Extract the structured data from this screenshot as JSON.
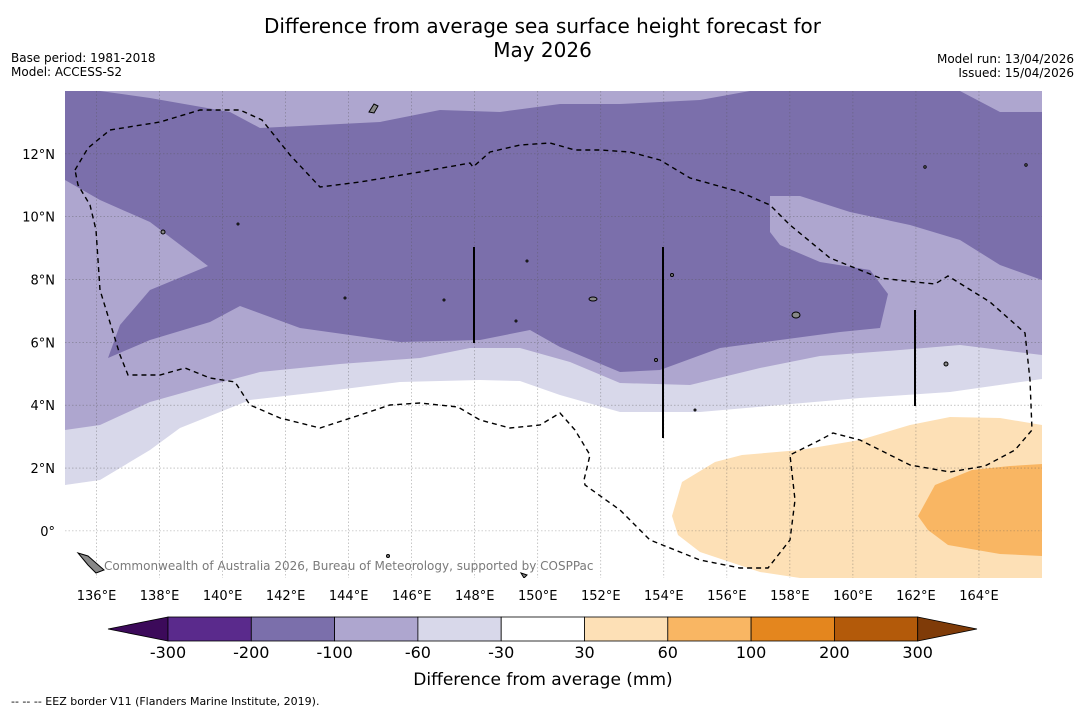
{
  "title_line1": "Difference from average sea surface height forecast for",
  "title_line2": "May 2026",
  "base_period": "Base period: 1981-2018",
  "model": "Model: ACCESS-S2",
  "model_run": "Model run: 13/04/2026",
  "issued": "Issued: 15/04/2026",
  "copyright": "Commonwealth of Australia 2026, Bureau of Meteorology, supported by COSPPac",
  "footer": "--  --  -- EEZ border V11 (Flanders Marine Institute, 2019).",
  "chart_data": {
    "type": "heatmap",
    "title": "Difference from average sea surface height forecast for May 2026",
    "xlabel": "",
    "ylabel": "",
    "xlim": [
      135,
      166
    ],
    "ylim": [
      -1.5,
      14
    ],
    "x_ticks": [
      136,
      138,
      140,
      142,
      144,
      146,
      148,
      150,
      152,
      154,
      156,
      158,
      160,
      162,
      164
    ],
    "x_tick_labels": [
      "136°E",
      "138°E",
      "140°E",
      "142°E",
      "144°E",
      "146°E",
      "148°E",
      "150°E",
      "152°E",
      "154°E",
      "156°E",
      "158°E",
      "160°E",
      "162°E",
      "164°E"
    ],
    "y_ticks": [
      0,
      2,
      4,
      6,
      8,
      10,
      12
    ],
    "y_tick_labels": [
      "0°",
      "2°N",
      "4°N",
      "6°N",
      "8°N",
      "10°N",
      "12°N"
    ],
    "colorbar": {
      "label": "Difference from average (mm)",
      "bounds": [
        -300,
        -200,
        -100,
        -60,
        -30,
        30,
        60,
        100,
        200,
        300
      ],
      "tick_labels": [
        "-300",
        "-200",
        "-100",
        "-60",
        "-30",
        "30",
        "60",
        "100",
        "200",
        "300"
      ],
      "colors": [
        "#5a2a8c",
        "#7b6fab",
        "#aea6cf",
        "#d8d8ea",
        "#ffffff",
        "#fde0b6",
        "#f9b663",
        "#e4861e",
        "#b35a0a"
      ],
      "under_color": "#3c0a5a",
      "over_color": "#7f3b08"
    },
    "regions": [
      {
        "range": "-200 to -100 mm",
        "color": "#7b6fab",
        "area": "north and central, roughly 5.5°N to 14°N"
      },
      {
        "range": "-100 to -60 mm",
        "color": "#aea6cf",
        "area": "band roughly 4.5°N to 6°N and western and eastern edges"
      },
      {
        "range": "-60 to -30 mm",
        "color": "#d8d8ea",
        "area": "band roughly 4°N to 5°N and west near 1.5°N to 3°N"
      },
      {
        "range": "30 to 60 mm",
        "color": "#fde0b6",
        "area": "south-east, roughly 153°E to 166°E, -1.5°N to 3.5°N"
      },
      {
        "range": "60 to 100 mm",
        "color": "#f9b663",
        "area": "south-east, roughly 161°E to 166°E, -0.8°N to 2°N"
      }
    ]
  }
}
